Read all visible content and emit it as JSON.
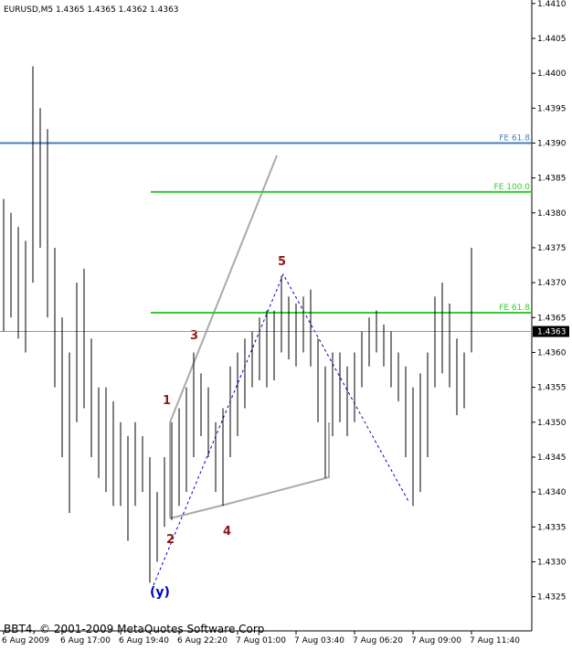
{
  "chart_data": {
    "type": "range",
    "title": "EURUSD,M5  1.4365 1.4365 1.4362 1.4363",
    "footer": "BBT4, © 2001-2009 MetaQuotes Software Corp",
    "categories": [
      "6 Aug 2009",
      null,
      null,
      null,
      null,
      null,
      null,
      null,
      "6 Aug 17:00",
      null,
      null,
      null,
      null,
      null,
      null,
      null,
      "6 Aug 19:40",
      null,
      null,
      null,
      null,
      null,
      null,
      null,
      "6 Aug 22:20",
      null,
      null,
      null,
      null,
      null,
      null,
      null,
      "7 Aug 01:00",
      null,
      null,
      null,
      null,
      null,
      null,
      null,
      "7 Aug 03:40",
      null,
      null,
      null,
      null,
      null,
      null,
      null,
      "7 Aug 06:20",
      null,
      null,
      null,
      null,
      null,
      null,
      null,
      "7 Aug 09:00",
      null,
      null,
      null,
      null,
      null,
      null,
      null,
      "7 Aug 11:40"
    ],
    "high": [
      1.4382,
      1.438,
      1.4378,
      1.4376,
      1.4401,
      1.4395,
      1.4392,
      1.4375,
      1.4365,
      1.436,
      1.437,
      1.4372,
      1.4362,
      1.4355,
      1.4355,
      1.4353,
      1.435,
      1.4348,
      1.435,
      1.4348,
      1.4345,
      1.434,
      1.4345,
      1.435,
      1.4352,
      1.4355,
      1.436,
      1.4357,
      1.4355,
      1.435,
      1.4352,
      1.4358,
      1.436,
      1.4362,
      1.4363,
      1.4365,
      1.4366,
      1.4366,
      1.4371,
      1.4368,
      1.4367,
      1.4368,
      1.4369,
      1.4362,
      1.4358,
      1.436,
      1.436,
      1.4358,
      1.436,
      1.4363,
      1.4365,
      1.4366,
      1.4364,
      1.4363,
      1.436,
      1.4358,
      1.4355,
      1.4357,
      1.436,
      1.4368,
      1.437,
      1.4367,
      1.4362,
      1.436,
      1.4375
    ],
    "low": [
      1.4363,
      1.4365,
      1.4362,
      1.436,
      1.437,
      1.4375,
      1.4365,
      1.4355,
      1.4345,
      1.4337,
      1.435,
      1.4352,
      1.4345,
      1.4342,
      1.434,
      1.4338,
      1.4338,
      1.4333,
      1.4338,
      1.434,
      1.4327,
      1.433,
      1.4335,
      1.4336,
      1.4338,
      1.434,
      1.4345,
      1.4348,
      1.4345,
      1.434,
      1.4338,
      1.4345,
      1.4348,
      1.4352,
      1.4355,
      1.4356,
      1.4355,
      1.4356,
      1.436,
      1.4359,
      1.4358,
      1.436,
      1.4358,
      1.435,
      1.4342,
      1.4348,
      1.435,
      1.4348,
      1.435,
      1.4355,
      1.4358,
      1.436,
      1.4358,
      1.4355,
      1.4353,
      1.4345,
      1.4338,
      1.434,
      1.4345,
      1.4355,
      1.4357,
      1.4355,
      1.4351,
      1.4352,
      1.436
    ],
    "color": "#000000",
    "ylim": [
      1.43201,
      1.44105
    ],
    "yticks": [
      {
        "value": 1.4325,
        "label": "1.4325"
      },
      {
        "value": 1.433,
        "label": "1.4330"
      },
      {
        "value": 1.4335,
        "label": "1.4335"
      },
      {
        "value": 1.434,
        "label": "1.4340"
      },
      {
        "value": 1.4345,
        "label": "1.4345"
      },
      {
        "value": 1.435,
        "label": "1.4350"
      },
      {
        "value": 1.4355,
        "label": "1.4355"
      },
      {
        "value": 1.436,
        "label": "1.4360"
      },
      {
        "value": 1.4365,
        "label": "1.4365"
      },
      {
        "value": 1.437,
        "label": "1.4370"
      },
      {
        "value": 1.4375,
        "label": "1.4375"
      },
      {
        "value": 1.438,
        "label": "1.4380"
      },
      {
        "value": 1.4385,
        "label": "1.4385"
      },
      {
        "value": 1.439,
        "label": "1.4390"
      },
      {
        "value": 1.4395,
        "label": "1.4395"
      },
      {
        "value": 1.44,
        "label": "1.4400"
      },
      {
        "value": 1.4405,
        "label": "1.4405"
      },
      {
        "value": 1.441,
        "label": "1.4410"
      }
    ],
    "current_price": {
      "value": 1.4363,
      "label": "1.4363"
    },
    "levels": [
      {
        "label": "FE 61.8",
        "value": 1.439,
        "color": "#4a7fb5",
        "full": true
      },
      {
        "label": "FE 100.0",
        "value": 1.4383,
        "color": "#33cc33",
        "full": false
      },
      {
        "label": "FE 61.8",
        "value": 1.43657,
        "color": "#33cc33",
        "full": false
      }
    ],
    "wave_labels": [
      "1",
      "2",
      "3",
      "4",
      "5",
      "(y)"
    ]
  }
}
